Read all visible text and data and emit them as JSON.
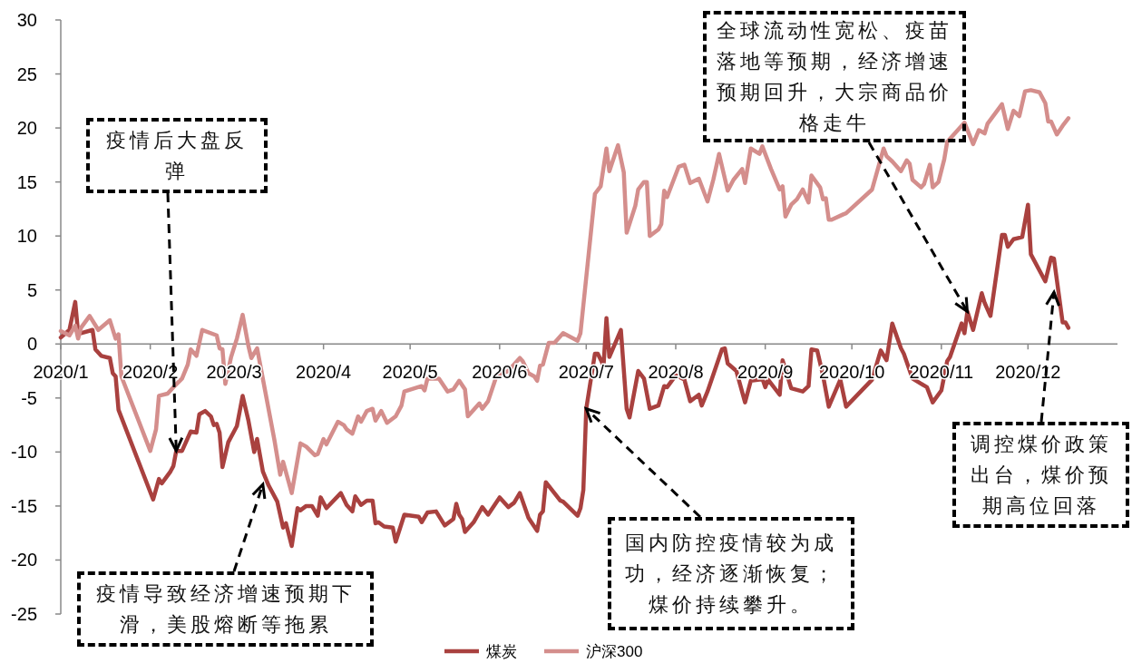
{
  "chart_data": {
    "type": "line",
    "xlim": [
      "2020-01-01",
      "2021-01-01"
    ],
    "xticks": [
      {
        "value": "2020-01-01",
        "label": "2020/1"
      },
      {
        "value": "2020-02-01",
        "label": "2020/2"
      },
      {
        "value": "2020-03-01",
        "label": "2020/3"
      },
      {
        "value": "2020-04-01",
        "label": "2020/4"
      },
      {
        "value": "2020-05-01",
        "label": "2020/5"
      },
      {
        "value": "2020-06-01",
        "label": "2020/6"
      },
      {
        "value": "2020-07-01",
        "label": "2020/7"
      },
      {
        "value": "2020-08-01",
        "label": "2020/8"
      },
      {
        "value": "2020-09-01",
        "label": "2020/9"
      },
      {
        "value": "2020-10-01",
        "label": "2020/10"
      },
      {
        "value": "2020-11-01",
        "label": "2020/11"
      },
      {
        "value": "2020-12-01",
        "label": "2020/12"
      }
    ],
    "ylim": [
      -25,
      30
    ],
    "yticks": [
      -25,
      -20,
      -15,
      -10,
      -5,
      0,
      5,
      10,
      15,
      20,
      25,
      30
    ],
    "legend": "bottom",
    "series": [
      {
        "name": "煤炭",
        "color": "#a9413f",
        "x": [
          "2020-01-01",
          "2020-01-04",
          "2020-01-06",
          "2020-01-07",
          "2020-01-08",
          "2020-01-12",
          "2020-01-13",
          "2020-01-15",
          "2020-01-18",
          "2020-01-19",
          "2020-01-20",
          "2020-01-21",
          "2020-02-02",
          "2020-02-04",
          "2020-02-05",
          "2020-02-08",
          "2020-02-09",
          "2020-02-10",
          "2020-02-12",
          "2020-02-15",
          "2020-02-17",
          "2020-02-18",
          "2020-02-20",
          "2020-02-22",
          "2020-02-23",
          "2020-02-24",
          "2020-02-25",
          "2020-02-26",
          "2020-02-28",
          "2020-03-02",
          "2020-03-04",
          "2020-03-06",
          "2020-03-08",
          "2020-03-09",
          "2020-03-11",
          "2020-03-13",
          "2020-03-16",
          "2020-03-18",
          "2020-03-19",
          "2020-03-21",
          "2020-03-23",
          "2020-03-24",
          "2020-03-26",
          "2020-03-28",
          "2020-03-30",
          "2020-03-31",
          "2020-04-02",
          "2020-04-07",
          "2020-04-09",
          "2020-04-11",
          "2020-04-12",
          "2020-04-14",
          "2020-04-16",
          "2020-04-18",
          "2020-04-19",
          "2020-04-20",
          "2020-04-22",
          "2020-04-25",
          "2020-04-26",
          "2020-04-29",
          "2020-05-04",
          "2020-05-05",
          "2020-05-07",
          "2020-05-10",
          "2020-05-13",
          "2020-05-16",
          "2020-05-17",
          "2020-05-18",
          "2020-05-19",
          "2020-05-20",
          "2020-05-23",
          "2020-05-26",
          "2020-05-28",
          "2020-06-01",
          "2020-06-04",
          "2020-06-06",
          "2020-06-08",
          "2020-06-11",
          "2020-06-14",
          "2020-06-15",
          "2020-06-16",
          "2020-06-17",
          "2020-06-22",
          "2020-06-23",
          "2020-06-28",
          "2020-06-29",
          "2020-06-30",
          "2020-07-01",
          "2020-07-04",
          "2020-07-05",
          "2020-07-07",
          "2020-07-08",
          "2020-07-09",
          "2020-07-13",
          "2020-07-15",
          "2020-07-16",
          "2020-07-19",
          "2020-07-21",
          "2020-07-23",
          "2020-07-26",
          "2020-07-28",
          "2020-07-29",
          "2020-08-01",
          "2020-08-04",
          "2020-08-06",
          "2020-08-09",
          "2020-08-10",
          "2020-08-12",
          "2020-08-17",
          "2020-08-18",
          "2020-08-19",
          "2020-08-22",
          "2020-08-25",
          "2020-08-27",
          "2020-08-30",
          "2020-08-31",
          "2020-09-01",
          "2020-09-02",
          "2020-09-06",
          "2020-09-07",
          "2020-09-10",
          "2020-09-14",
          "2020-09-16",
          "2020-09-17",
          "2020-09-19",
          "2020-09-21",
          "2020-09-23",
          "2020-09-27",
          "2020-09-29",
          "2020-10-08",
          "2020-10-11",
          "2020-10-13",
          "2020-10-15",
          "2020-10-18",
          "2020-10-19",
          "2020-10-22",
          "2020-10-27",
          "2020-10-29",
          "2020-11-01",
          "2020-11-03",
          "2020-11-04",
          "2020-11-08",
          "2020-11-09",
          "2020-11-10",
          "2020-11-12",
          "2020-11-15",
          "2020-11-16",
          "2020-11-18",
          "2020-11-22",
          "2020-11-23",
          "2020-11-24",
          "2020-11-26",
          "2020-11-29",
          "2020-12-01",
          "2020-12-02",
          "2020-12-07",
          "2020-12-09",
          "2020-12-10",
          "2020-12-13",
          "2020-12-14",
          "2020-12-15"
        ],
        "values": [
          0.6,
          1.3,
          3.9,
          1.0,
          1.0,
          1.3,
          -0.5,
          -1.1,
          -1.3,
          -2.7,
          -3.0,
          -6.1,
          -14.4,
          -12.5,
          -12.9,
          -11.8,
          -11.3,
          -9.9,
          -9.9,
          -8.1,
          -8.2,
          -6.5,
          -6.2,
          -6.7,
          -7.5,
          -7.4,
          -8.2,
          -11.4,
          -9.1,
          -7.6,
          -4.8,
          -7.1,
          -10.0,
          -8.8,
          -11.8,
          -13.1,
          -14.6,
          -17.0,
          -16.6,
          -18.7,
          -15.2,
          -15.4,
          -15.0,
          -15.0,
          -15.9,
          -14.2,
          -15.2,
          -13.8,
          -14.9,
          -15.5,
          -14.1,
          -14.9,
          -14.5,
          -14.5,
          -16.6,
          -16.5,
          -16.9,
          -17.0,
          -18.3,
          -15.8,
          -16.0,
          -16.5,
          -15.6,
          -15.5,
          -16.8,
          -16.2,
          -14.8,
          -15.8,
          -16.2,
          -17.4,
          -16.5,
          -15.1,
          -15.8,
          -14.2,
          -15.1,
          -14.7,
          -13.8,
          -16.1,
          -17.3,
          -15.8,
          -15.5,
          -12.8,
          -14.5,
          -14.6,
          -15.9,
          -15.2,
          -13.5,
          -6.0,
          -0.9,
          -0.9,
          -2.0,
          2.4,
          -1.2,
          1.3,
          -6.0,
          -6.8,
          -2.5,
          -3.2,
          -6.0,
          -5.7,
          -3.9,
          -4.0,
          -2.9,
          -3.3,
          -5.3,
          -4.7,
          -5.7,
          -4.4,
          -0.5,
          -0.4,
          -1.8,
          -2.5,
          -5.4,
          -3.4,
          -3.3,
          -3.2,
          -4.0,
          -3.3,
          -4.7,
          -1.5,
          -4.1,
          -4.4,
          -3.9,
          -0.5,
          -0.6,
          -2.9,
          -5.8,
          -3.3,
          -5.8,
          -3.3,
          -0.6,
          -1.5,
          1.9,
          -0.4,
          -0.9,
          -3.2,
          -4.0,
          -5.4,
          -4.3,
          -1.6,
          -1.2,
          1.9,
          1.0,
          3.0,
          1.3,
          4.7,
          3.8,
          2.6,
          10.1,
          10.1,
          9.0,
          9.7,
          9.9,
          12.9,
          8.3,
          5.8,
          8.0,
          7.9,
          2.0,
          2.0,
          1.5
        ]
      },
      {
        "name": "沪深300",
        "color": "#d48e8c",
        "x": [
          "2020-01-01",
          "2020-01-04",
          "2020-01-06",
          "2020-01-07",
          "2020-01-08",
          "2020-01-11",
          "2020-01-14",
          "2020-01-18",
          "2020-01-20",
          "2020-01-21",
          "2020-01-22",
          "2020-02-01",
          "2020-02-03",
          "2020-02-04",
          "2020-02-07",
          "2020-02-09",
          "2020-02-12",
          "2020-02-14",
          "2020-02-15",
          "2020-02-17",
          "2020-02-19",
          "2020-02-24",
          "2020-02-25",
          "2020-02-26",
          "2020-02-27",
          "2020-02-29",
          "2020-03-02",
          "2020-03-04",
          "2020-03-06",
          "2020-03-07",
          "2020-03-09",
          "2020-03-15",
          "2020-03-17",
          "2020-03-18",
          "2020-03-21",
          "2020-03-24",
          "2020-03-26",
          "2020-03-29",
          "2020-03-30",
          "2020-04-01",
          "2020-04-02",
          "2020-04-06",
          "2020-04-08",
          "2020-04-09",
          "2020-04-11",
          "2020-04-13",
          "2020-04-14",
          "2020-04-16",
          "2020-04-18",
          "2020-04-19",
          "2020-04-21",
          "2020-04-23",
          "2020-04-26",
          "2020-04-28",
          "2020-04-29",
          "2020-05-05",
          "2020-05-06",
          "2020-05-07",
          "2020-05-11",
          "2020-05-14",
          "2020-05-16",
          "2020-05-18",
          "2020-05-20",
          "2020-05-21",
          "2020-05-25",
          "2020-05-26",
          "2020-05-28",
          "2020-05-31",
          "2020-06-04",
          "2020-06-07",
          "2020-06-08",
          "2020-06-09",
          "2020-06-11",
          "2020-06-13",
          "2020-06-14",
          "2020-06-15",
          "2020-06-16",
          "2020-06-18",
          "2020-06-20",
          "2020-06-23",
          "2020-06-28",
          "2020-06-29",
          "2020-07-04",
          "2020-07-06",
          "2020-07-08",
          "2020-07-09",
          "2020-07-12",
          "2020-07-14",
          "2020-07-15",
          "2020-07-18",
          "2020-07-19",
          "2020-07-21",
          "2020-07-22",
          "2020-07-23",
          "2020-07-26",
          "2020-07-27",
          "2020-07-28",
          "2020-07-29",
          "2020-08-02",
          "2020-08-04",
          "2020-08-06",
          "2020-08-09",
          "2020-08-12",
          "2020-08-14",
          "2020-08-16",
          "2020-08-19",
          "2020-08-21",
          "2020-08-24",
          "2020-08-25",
          "2020-08-27",
          "2020-08-30",
          "2020-08-31",
          "2020-09-03",
          "2020-09-06",
          "2020-09-07",
          "2020-09-08",
          "2020-09-10",
          "2020-09-12",
          "2020-09-14",
          "2020-09-16",
          "2020-09-17",
          "2020-09-20",
          "2020-09-21",
          "2020-09-22",
          "2020-09-23",
          "2020-09-24",
          "2020-09-28",
          "2020-09-29",
          "2020-10-08",
          "2020-10-12",
          "2020-10-13",
          "2020-10-15",
          "2020-10-18",
          "2020-10-20",
          "2020-10-21",
          "2020-10-22",
          "2020-10-25",
          "2020-10-26",
          "2020-10-28",
          "2020-10-29",
          "2020-10-31",
          "2020-11-02",
          "2020-11-03",
          "2020-11-09",
          "2020-11-12",
          "2020-11-14",
          "2020-11-16",
          "2020-11-17",
          "2020-11-22",
          "2020-11-24",
          "2020-11-26",
          "2020-11-28",
          "2020-11-30",
          "2020-12-02",
          "2020-12-05",
          "2020-12-07",
          "2020-12-08",
          "2020-12-09",
          "2020-12-11",
          "2020-12-13",
          "2020-12-15"
        ],
        "values": [
          1.2,
          0.8,
          1.7,
          0.5,
          1.5,
          2.6,
          1.3,
          2.2,
          0.5,
          0.9,
          -3.0,
          -9.9,
          -7.9,
          -4.8,
          -4.6,
          -4.0,
          -3.2,
          -1.9,
          -0.5,
          -1.1,
          1.3,
          0.8,
          -0.4,
          -0.5,
          -3.7,
          -1.2,
          0.5,
          2.7,
          -0.2,
          -1.3,
          -0.4,
          -8.9,
          -12.1,
          -10.9,
          -13.8,
          -9.2,
          -9.5,
          -10.3,
          -10.2,
          -8.8,
          -9.3,
          -7.2,
          -7.5,
          -7.9,
          -8.3,
          -6.7,
          -7.2,
          -6.2,
          -6.0,
          -7.1,
          -6.2,
          -7.3,
          -6.7,
          -5.7,
          -4.4,
          -3.9,
          -4.3,
          -3.2,
          -3.2,
          -4.4,
          -4.2,
          -3.4,
          -4.2,
          -6.7,
          -5.5,
          -6.0,
          -5.3,
          -2.9,
          -2.5,
          -1.6,
          -1.3,
          -1.6,
          -2.7,
          -3.0,
          -3.4,
          -2.0,
          -1.9,
          0.1,
          0.1,
          1.0,
          0.3,
          1.0,
          13.9,
          14.6,
          18.1,
          16.0,
          18.4,
          15.9,
          10.3,
          12.8,
          14.3,
          15.0,
          15.0,
          10.0,
          10.6,
          11.1,
          14.2,
          13.6,
          16.4,
          16.6,
          14.9,
          15.3,
          13.2,
          15.2,
          17.6,
          14.2,
          15.2,
          16.2,
          14.9,
          18.1,
          17.6,
          18.3,
          16.2,
          14.3,
          14.6,
          11.8,
          12.9,
          13.4,
          14.3,
          13.1,
          15.6,
          14.5,
          13.4,
          13.5,
          11.5,
          11.5,
          12.0,
          12.1,
          14.3,
          18.1,
          17.4,
          16.9,
          16.0,
          17.0,
          16.7,
          15.2,
          14.5,
          14.8,
          16.6,
          14.5,
          15.0,
          17.1,
          18.7,
          20.5,
          18.5,
          19.8,
          19.5,
          20.4,
          22.2,
          19.9,
          21.6,
          21.1,
          23.4,
          23.5,
          23.3,
          22.3,
          20.6,
          20.6,
          19.4,
          20.2,
          20.9
        ]
      }
    ],
    "annotations": [
      {
        "text": "疫情后大盘反弹",
        "x": "2020-02-10",
        "y": -9.9
      },
      {
        "text": "疫情导致经济增速预期下滑，美股熔断等拖累",
        "x": "2020-03-11",
        "y": -13.0
      },
      {
        "text": "国内防控疫情较为成功，经济逐渐恢复；煤价持续攀升。",
        "x": "2020-07-01",
        "y": -6.0
      },
      {
        "text": "全球流动性宽松、疫苗落地等预期，经济增速预期回升，大宗商品价格走牛",
        "x": "2020-11-10",
        "y": 3.0
      },
      {
        "text": "调控煤价政策出台，煤价预期高位回落",
        "x": "2020-12-10",
        "y": 4.8
      }
    ]
  }
}
